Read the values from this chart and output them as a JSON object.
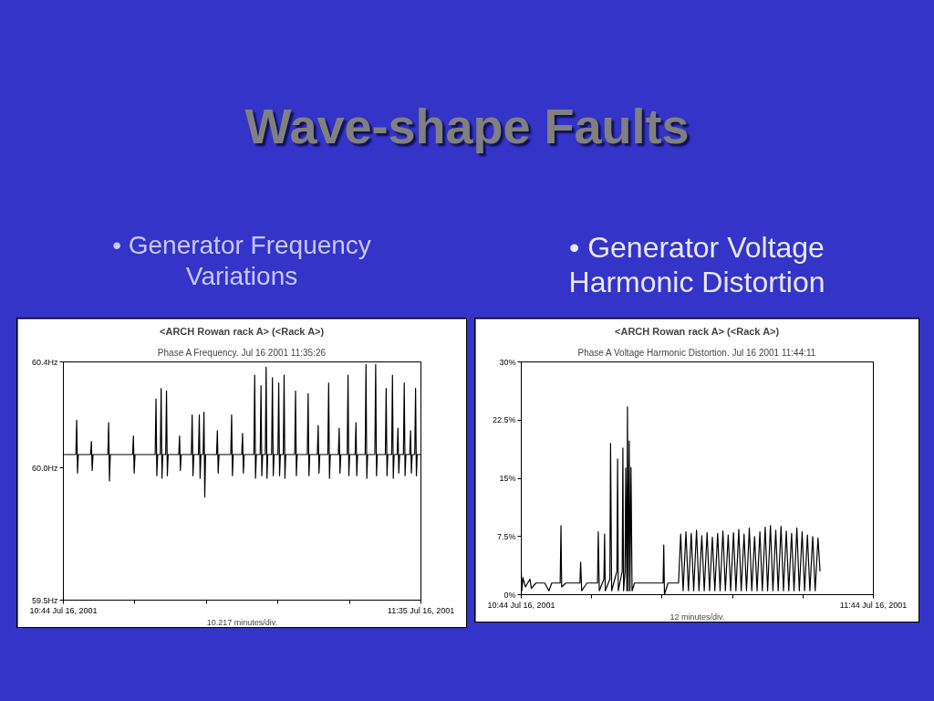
{
  "chart_data": [
    {
      "type": "line",
      "title": "<ARCH Rowan rack A> (<Rack A>)",
      "subtitle": "Phase A Frequency. Jul 16 2001 11:35:26",
      "xlabel": "10.217 minutes/div.",
      "annotations": [
        "Wave-shape Faults",
        "• Generator Frequency Variations"
      ],
      "color": "#000000",
      "x": [
        "2001-07-16T10:44:00",
        "2001-07-16T10:45:47",
        "2001-07-16T10:45:54",
        "2001-07-16T10:46:01",
        "2001-07-16T10:46:08",
        "2001-07-16T10:47:53",
        "2001-07-16T10:48:00",
        "2001-07-16T10:48:07",
        "2001-07-16T10:48:14",
        "2001-07-16T10:50:21",
        "2001-07-16T10:50:28",
        "2001-07-16T10:50:35",
        "2001-07-16T10:50:42",
        "2001-07-16T10:53:53",
        "2001-07-16T10:54:00",
        "2001-07-16T10:54:07",
        "2001-07-16T10:54:14",
        "2001-07-16T10:57:07",
        "2001-07-16T10:57:14",
        "2001-07-16T10:57:21",
        "2001-07-16T10:57:28",
        "2001-07-16T10:57:51",
        "2001-07-16T10:57:58",
        "2001-07-16T10:58:05",
        "2001-07-16T10:58:12",
        "2001-07-16T10:58:37",
        "2001-07-16T10:58:44",
        "2001-07-16T10:58:51",
        "2001-07-16T10:58:58",
        "2001-07-16T11:00:29",
        "2001-07-16T11:00:36",
        "2001-07-16T11:00:43",
        "2001-07-16T11:00:50",
        "2001-07-16T11:02:17",
        "2001-07-16T11:02:24",
        "2001-07-16T11:02:31",
        "2001-07-16T11:02:38",
        "2001-07-16T11:03:18",
        "2001-07-16T11:03:25",
        "2001-07-16T11:03:32",
        "2001-07-16T11:03:39",
        "2001-07-16T11:03:58",
        "2001-07-16T11:04:05",
        "2001-07-16T11:04:12",
        "2001-07-16T11:04:19",
        "2001-07-16T11:05:53",
        "2001-07-16T11:06:00",
        "2001-07-16T11:06:07",
        "2001-07-16T11:06:14",
        "2001-07-16T11:07:55",
        "2001-07-16T11:08:02",
        "2001-07-16T11:08:09",
        "2001-07-16T11:08:16",
        "2001-07-16T11:09:29",
        "2001-07-16T11:09:36",
        "2001-07-16T11:09:43",
        "2001-07-16T11:09:50",
        "2001-07-16T11:11:13",
        "2001-07-16T11:11:20",
        "2001-07-16T11:11:27",
        "2001-07-16T11:11:34",
        "2001-07-16T11:12:07",
        "2001-07-16T11:12:14",
        "2001-07-16T11:12:21",
        "2001-07-16T11:12:28",
        "2001-07-16T11:12:51",
        "2001-07-16T11:12:58",
        "2001-07-16T11:13:05",
        "2001-07-16T11:13:12",
        "2001-07-16T11:13:45",
        "2001-07-16T11:13:52",
        "2001-07-16T11:13:59",
        "2001-07-16T11:14:06",
        "2001-07-16T11:14:39",
        "2001-07-16T11:14:46",
        "2001-07-16T11:14:53",
        "2001-07-16T11:15:00",
        "2001-07-16T11:15:25",
        "2001-07-16T11:15:32",
        "2001-07-16T11:15:39",
        "2001-07-16T11:15:46",
        "2001-07-16T11:17:03",
        "2001-07-16T11:17:10",
        "2001-07-16T11:17:17",
        "2001-07-16T11:17:24",
        "2001-07-16T11:18:51",
        "2001-07-16T11:18:58",
        "2001-07-16T11:19:05",
        "2001-07-16T11:19:12",
        "2001-07-16T11:20:17",
        "2001-07-16T11:20:24",
        "2001-07-16T11:20:31",
        "2001-07-16T11:20:38",
        "2001-07-16T11:21:47",
        "2001-07-16T11:21:54",
        "2001-07-16T11:22:01",
        "2001-07-16T11:22:08",
        "2001-07-16T11:23:17",
        "2001-07-16T11:23:24",
        "2001-07-16T11:23:31",
        "2001-07-16T11:23:38",
        "2001-07-16T11:24:33",
        "2001-07-16T11:24:40",
        "2001-07-16T11:24:47",
        "2001-07-16T11:24:54",
        "2001-07-16T11:25:41",
        "2001-07-16T11:25:48",
        "2001-07-16T11:25:55",
        "2001-07-16T11:26:02",
        "2001-07-16T11:27:07",
        "2001-07-16T11:27:14",
        "2001-07-16T11:27:21",
        "2001-07-16T11:27:28",
        "2001-07-16T11:28:30",
        "2001-07-16T11:28:37",
        "2001-07-16T11:28:44",
        "2001-07-16T11:28:51",
        "2001-07-16T11:30:00",
        "2001-07-16T11:30:07",
        "2001-07-16T11:30:14",
        "2001-07-16T11:30:21",
        "2001-07-16T11:30:54",
        "2001-07-16T11:31:01",
        "2001-07-16T11:31:08",
        "2001-07-16T11:31:15",
        "2001-07-16T11:31:41",
        "2001-07-16T11:31:48",
        "2001-07-16T11:31:55",
        "2001-07-16T11:32:02",
        "2001-07-16T11:32:35",
        "2001-07-16T11:32:42",
        "2001-07-16T11:32:49",
        "2001-07-16T11:32:56",
        "2001-07-16T11:33:29",
        "2001-07-16T11:33:36",
        "2001-07-16T11:33:43",
        "2001-07-16T11:33:50",
        "2001-07-16T11:34:12",
        "2001-07-16T11:34:19",
        "2001-07-16T11:34:26",
        "2001-07-16T11:34:33",
        "2001-07-16T11:35:05"
      ],
      "values": [
        60.05,
        60.05,
        60.18,
        59.98,
        60.05,
        60.05,
        60.1,
        59.99,
        60.05,
        60.05,
        60.17,
        59.95,
        60.05,
        60.05,
        60.12,
        59.98,
        60.05,
        60.05,
        60.26,
        59.97,
        60.05,
        60.05,
        60.3,
        59.96,
        60.05,
        60.05,
        60.29,
        59.97,
        60.05,
        60.05,
        60.12,
        59.99,
        60.05,
        60.05,
        60.2,
        59.97,
        60.05,
        60.05,
        60.2,
        59.96,
        60.05,
        60.05,
        60.21,
        59.89,
        60.05,
        60.05,
        60.14,
        59.98,
        60.05,
        60.05,
        60.2,
        59.97,
        60.05,
        60.05,
        60.13,
        59.98,
        60.05,
        60.05,
        60.35,
        59.96,
        60.05,
        60.05,
        60.31,
        59.97,
        60.05,
        60.05,
        60.38,
        59.96,
        60.05,
        60.05,
        60.34,
        59.97,
        60.05,
        60.05,
        60.32,
        59.97,
        60.05,
        60.05,
        60.35,
        59.96,
        60.05,
        60.05,
        60.29,
        59.97,
        60.05,
        60.05,
        60.28,
        59.97,
        60.05,
        60.05,
        60.16,
        59.98,
        60.05,
        60.05,
        60.32,
        59.96,
        60.05,
        60.05,
        60.15,
        59.98,
        60.05,
        60.05,
        60.35,
        59.97,
        60.05,
        60.05,
        60.17,
        59.97,
        60.05,
        60.05,
        60.39,
        59.96,
        60.05,
        60.05,
        60.39,
        59.97,
        60.05,
        60.05,
        60.3,
        59.97,
        60.05,
        60.05,
        60.35,
        59.96,
        60.05,
        60.05,
        60.15,
        59.98,
        60.05,
        60.05,
        60.32,
        59.97,
        60.05,
        60.05,
        60.14,
        59.98,
        60.05,
        60.05,
        60.3,
        59.97,
        60.05,
        60.05
      ],
      "xlim": [
        "2001-07-16T10:44:00",
        "2001-07-16T11:35:05"
      ],
      "xticks": [
        {
          "value": "2001-07-16T10:44:00",
          "label": "10:44 Jul 16, 2001"
        },
        {
          "value": "2001-07-16T10:54:13",
          "label": null
        },
        {
          "value": "2001-07-16T11:04:26",
          "label": null
        },
        {
          "value": "2001-07-16T11:14:39",
          "label": null
        },
        {
          "value": "2001-07-16T11:24:52",
          "label": null
        },
        {
          "value": "2001-07-16T11:35:05",
          "label": "11:35 Jul 16, 2001"
        }
      ],
      "ylim": [
        59.5,
        60.4
      ],
      "yticks": [
        {
          "value": 59.5,
          "label": "59.5Hz"
        },
        {
          "value": 60.0,
          "label": "60.0Hz"
        },
        {
          "value": 60.4,
          "label": "60.4Hz"
        }
      ]
    },
    {
      "type": "line",
      "title": "<ARCH Rowan rack A> (<Rack A>)",
      "subtitle": "Phase A Voltage Harmonic Distortion. Jul 16 2001 11:44:11",
      "xlabel": "12 minutes/div.",
      "annotations": [
        "• Generator Voltage Harmonic Distortion"
      ],
      "color": "#000000",
      "x": [
        "2001-07-16T10:44:00",
        "2001-07-16T10:44:06",
        "2001-07-16T10:44:17",
        "2001-07-16T10:44:42",
        "2001-07-16T10:45:29",
        "2001-07-16T10:45:43",
        "2001-07-16T10:46:30",
        "2001-07-16T10:48:00",
        "2001-07-16T10:48:43",
        "2001-07-16T10:49:12",
        "2001-07-16T10:50:38",
        "2001-07-16T10:50:46",
        "2001-07-16T10:50:53",
        "2001-07-16T10:51:36",
        "2001-07-16T10:54:00",
        "2001-07-16T10:54:07",
        "2001-07-16T10:54:18",
        "2001-07-16T10:55:12",
        "2001-07-16T10:57:00",
        "2001-07-16T10:57:07",
        "2001-07-16T10:57:18",
        "2001-07-16T10:58:05",
        "2001-07-16T10:58:12",
        "2001-07-16T10:58:19",
        "2001-07-16T10:59:06",
        "2001-07-16T10:59:13",
        "2001-07-16T10:59:24",
        "2001-07-16T11:00:18",
        "2001-07-16T11:00:25",
        "2001-07-16T11:00:32",
        "2001-07-16T11:01:12",
        "2001-07-16T11:01:19",
        "2001-07-16T11:01:26",
        "2001-07-16T11:01:41",
        "2001-07-16T11:01:48",
        "2001-07-16T11:01:59",
        "2001-07-16T11:02:06",
        "2001-07-16T11:02:13",
        "2001-07-16T11:02:24",
        "2001-07-16T11:02:31",
        "2001-07-16T11:02:42",
        "2001-07-16T11:02:53",
        "2001-07-16T11:03:18",
        "2001-07-16T11:08:10",
        "2001-07-16T11:08:17",
        "2001-07-16T11:08:24",
        "2001-07-16T11:09:00",
        "2001-07-16T11:10:48",
        "2001-07-16T11:11:10",
        "2001-07-16T11:11:35",
        "2001-07-16T11:12:04",
        "2001-07-16T11:12:29",
        "2001-07-16T11:12:58",
        "2001-07-16T11:13:23",
        "2001-07-16T11:13:52",
        "2001-07-16T11:14:17",
        "2001-07-16T11:14:46",
        "2001-07-16T11:15:11",
        "2001-07-16T11:15:40",
        "2001-07-16T11:16:05",
        "2001-07-16T11:16:34",
        "2001-07-16T11:16:59",
        "2001-07-16T11:17:28",
        "2001-07-16T11:17:53",
        "2001-07-16T11:18:22",
        "2001-07-16T11:18:47",
        "2001-07-16T11:19:16",
        "2001-07-16T11:19:41",
        "2001-07-16T11:20:10",
        "2001-07-16T11:20:35",
        "2001-07-16T11:21:04",
        "2001-07-16T11:21:29",
        "2001-07-16T11:21:58",
        "2001-07-16T11:22:23",
        "2001-07-16T11:22:52",
        "2001-07-16T11:23:17",
        "2001-07-16T11:23:46",
        "2001-07-16T11:24:11",
        "2001-07-16T11:24:40",
        "2001-07-16T11:25:05",
        "2001-07-16T11:25:34",
        "2001-07-16T11:25:59",
        "2001-07-16T11:26:28",
        "2001-07-16T11:26:53",
        "2001-07-16T11:27:22",
        "2001-07-16T11:27:47",
        "2001-07-16T11:28:16",
        "2001-07-16T11:28:41",
        "2001-07-16T11:29:10",
        "2001-07-16T11:29:35",
        "2001-07-16T11:30:04",
        "2001-07-16T11:30:29",
        "2001-07-16T11:30:58",
        "2001-07-16T11:31:23",
        "2001-07-16T11:31:52",
        "2001-07-16T11:32:17",
        "2001-07-16T11:32:46",
        "2001-07-16T11:33:11",
        "2001-07-16T11:33:40",
        "2001-07-16T11:34:05",
        "2001-07-16T11:34:34",
        "2001-07-16T11:34:55"
      ],
      "values": [
        3.0,
        0.5,
        2.2,
        1.0,
        2.0,
        0.8,
        1.5,
        1.5,
        0.5,
        1.5,
        1.5,
        8.9,
        1.0,
        1.5,
        1.5,
        4.2,
        0.5,
        1.5,
        1.5,
        8.1,
        0.5,
        2.0,
        7.8,
        0.5,
        2.0,
        19.5,
        0.5,
        3.0,
        17.5,
        0.5,
        3.0,
        18.9,
        0.5,
        3.0,
        16.3,
        0.5,
        24.2,
        0.5,
        19.8,
        0.5,
        16.4,
        0.5,
        1.5,
        1.5,
        6.4,
        0.0,
        1.5,
        1.5,
        7.8,
        0.5,
        8.1,
        0.5,
        7.9,
        0.5,
        8.3,
        0.5,
        7.6,
        0.5,
        8.0,
        0.5,
        7.4,
        0.5,
        7.9,
        0.5,
        8.2,
        0.5,
        7.7,
        0.5,
        8.0,
        0.5,
        8.4,
        0.5,
        7.8,
        0.5,
        8.6,
        0.5,
        7.5,
        0.5,
        8.1,
        0.5,
        8.7,
        0.5,
        8.9,
        0.5,
        8.3,
        0.5,
        8.8,
        0.5,
        8.2,
        0.5,
        7.9,
        0.5,
        8.6,
        0.5,
        8.1,
        0.5,
        7.7,
        0.5,
        7.5,
        0.5,
        7.3,
        3.0
      ],
      "xlim": [
        "2001-07-16T10:44",
        "2001-07-16T11:44"
      ],
      "xticks": [
        {
          "value": "2001-07-16T10:44",
          "label": "10:44 Jul 16, 2001"
        },
        {
          "value": "2001-07-16T10:56",
          "label": null
        },
        {
          "value": "2001-07-16T11:08",
          "label": null
        },
        {
          "value": "2001-07-16T11:20",
          "label": null
        },
        {
          "value": "2001-07-16T11:32",
          "label": null
        },
        {
          "value": "2001-07-16T11:44",
          "label": "11:44 Jul 16, 2001"
        }
      ],
      "ylim": [
        0,
        30
      ],
      "yticks": [
        {
          "value": 0,
          "label": "0%"
        },
        {
          "value": 7.5,
          "label": "7.5%"
        },
        {
          "value": 15,
          "label": "15%"
        },
        {
          "value": 22.5,
          "label": "22.5%"
        },
        {
          "value": 30,
          "label": "30%"
        }
      ]
    }
  ]
}
